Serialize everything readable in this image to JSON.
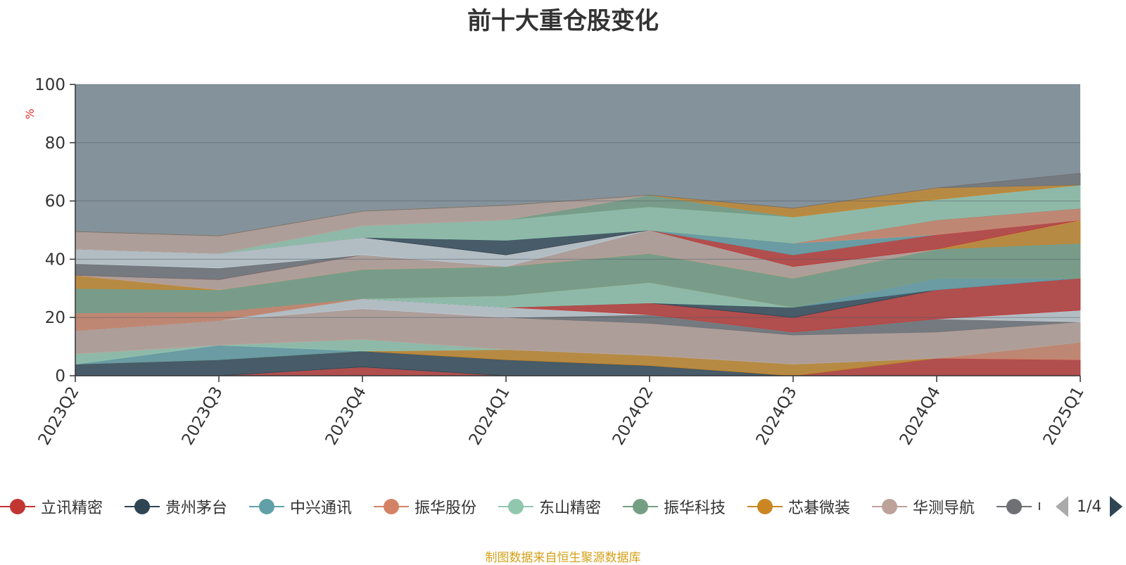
{
  "title": "前十大重仓股变化",
  "footer": "制图数据来自恒生聚源数据库",
  "pager": {
    "text": "1/4"
  },
  "legend": [
    {
      "name": "立讯精密",
      "color": "#c23531"
    },
    {
      "name": "贵州茅台",
      "color": "#2f4554"
    },
    {
      "name": "中兴通讯",
      "color": "#61a0a8"
    },
    {
      "name": "振华股份",
      "color": "#d48265"
    },
    {
      "name": "东山精密",
      "color": "#91c7ae"
    },
    {
      "name": "振华科技",
      "color": "#749f83"
    },
    {
      "name": "芯碁微装",
      "color": "#ca8622"
    },
    {
      "name": "华测导航",
      "color": "#bda29a"
    },
    {
      "name": "中",
      "color": "#6e7074"
    }
  ],
  "chart_data": {
    "type": "area",
    "stacked": true,
    "title": "前十大重仓股变化",
    "ylabel": "%",
    "ylim": [
      0,
      100
    ],
    "yticks": [
      0,
      20,
      40,
      60,
      80,
      100
    ],
    "categories": [
      "2023Q2",
      "2023Q3",
      "2023Q4",
      "2024Q1",
      "2024Q2",
      "2024Q3",
      "2024Q4",
      "2025Q1"
    ],
    "series": [
      {
        "name": "",
        "color": "#c23531",
        "values": [
          0,
          0,
          3,
          0,
          0,
          0,
          6,
          5.5
        ]
      },
      {
        "name": "",
        "color": "#d48265",
        "values": [
          0,
          0,
          0,
          0,
          0,
          0,
          0,
          6
        ]
      },
      {
        "name": "",
        "color": "#2f4554",
        "values": [
          4,
          5.5,
          5.5,
          5.5,
          3.5,
          0,
          0,
          0
        ]
      },
      {
        "name": "",
        "color": "#ca8622",
        "values": [
          0,
          0,
          0,
          3.5,
          3.5,
          4,
          0,
          0
        ]
      },
      {
        "name": "",
        "color": "#61a0a8",
        "values": [
          0,
          5,
          0,
          0,
          0,
          0,
          0,
          0
        ]
      },
      {
        "name": "",
        "color": "#91c7ae",
        "values": [
          3.5,
          0,
          4,
          0,
          0,
          0,
          0,
          0
        ]
      },
      {
        "name": "",
        "color": "#bda29a",
        "values": [
          8,
          8.5,
          10.5,
          11,
          11,
          10,
          9,
          7
        ]
      },
      {
        "name": "",
        "color": "#6e7074",
        "values": [
          0,
          0,
          0,
          0,
          3,
          1,
          4.5,
          0
        ]
      },
      {
        "name": "",
        "color": "#c4ccd3",
        "values": [
          0,
          0,
          3.5,
          3.5,
          0,
          0,
          0,
          4
        ]
      },
      {
        "name": "",
        "color": "#c23531",
        "values": [
          0,
          0,
          0,
          0,
          4,
          5,
          10,
          11
        ]
      },
      {
        "name": "",
        "color": "#2f4554",
        "values": [
          0,
          0,
          0,
          0,
          0,
          3.5,
          0,
          0
        ]
      },
      {
        "name": "",
        "color": "#61a0a8",
        "values": [
          0,
          0,
          0,
          0,
          0,
          0,
          4,
          0
        ]
      },
      {
        "name": "",
        "color": "#91c7ae",
        "values": [
          0,
          0,
          0,
          4,
          7,
          0,
          0,
          0
        ]
      },
      {
        "name": "",
        "color": "#d48265",
        "values": [
          6,
          3,
          0,
          0,
          0,
          0,
          0,
          0
        ]
      },
      {
        "name": "",
        "color": "#749f83",
        "values": [
          8.5,
          7.5,
          10,
          10,
          10,
          10,
          10,
          12
        ]
      },
      {
        "name": "",
        "color": "#ca8622",
        "values": [
          4.5,
          0,
          0,
          0,
          0,
          0,
          0,
          8
        ]
      },
      {
        "name": "",
        "color": "#bda29a",
        "values": [
          0,
          3.5,
          5,
          0,
          8,
          4,
          0,
          0
        ]
      },
      {
        "name": "",
        "color": "#c23531",
        "values": [
          0,
          0,
          0,
          0,
          0,
          4,
          5,
          0
        ]
      },
      {
        "name": "",
        "color": "#6e7074",
        "values": [
          4,
          4,
          0,
          0,
          0,
          0,
          0,
          0
        ]
      },
      {
        "name": "",
        "color": "#61a0a8",
        "values": [
          0,
          0,
          0,
          0,
          0,
          4,
          0,
          0
        ]
      },
      {
        "name": "",
        "color": "#c4ccd3",
        "values": [
          5,
          5,
          6,
          4,
          0,
          0,
          0,
          0
        ]
      },
      {
        "name": "",
        "color": "#d48265",
        "values": [
          0,
          0,
          0,
          0,
          0,
          0,
          5,
          4
        ]
      },
      {
        "name": "",
        "color": "#2f4554",
        "values": [
          0,
          0,
          0,
          5,
          0,
          0,
          0,
          0
        ]
      },
      {
        "name": "",
        "color": "#91c7ae",
        "values": [
          0,
          0,
          4,
          7,
          8,
          9,
          7,
          8
        ]
      },
      {
        "name": "",
        "color": "#749f83",
        "values": [
          0,
          0,
          0,
          0,
          4,
          0,
          0,
          0
        ]
      },
      {
        "name": "",
        "color": "#bda29a",
        "values": [
          6,
          6,
          5,
          5,
          0,
          0,
          0,
          0
        ]
      },
      {
        "name": "",
        "color": "#ca8622",
        "values": [
          0,
          0,
          0,
          0,
          0,
          3,
          4,
          0
        ]
      },
      {
        "name": "",
        "color": "#6e7074",
        "values": [
          0,
          0,
          0,
          0,
          0,
          0,
          0,
          4
        ]
      }
    ]
  }
}
